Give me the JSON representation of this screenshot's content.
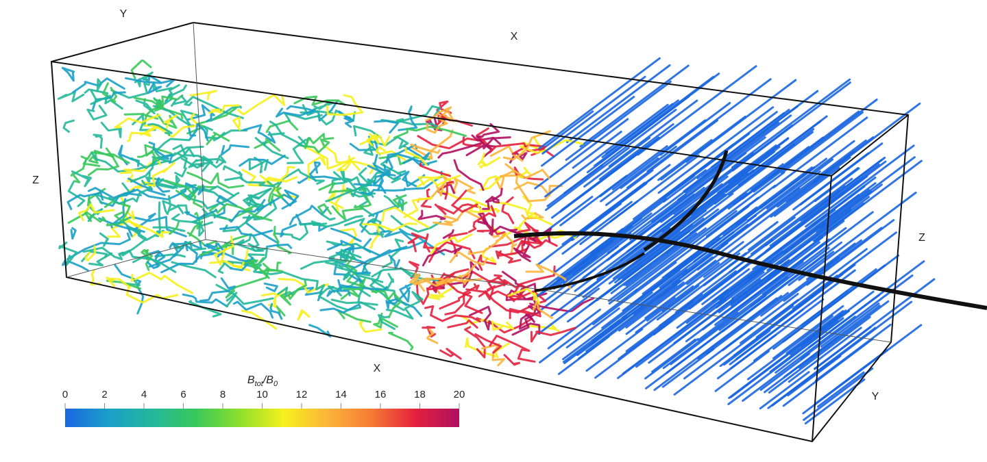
{
  "axis_labels": [
    "Y",
    "X",
    "Z",
    "Z",
    "X",
    "Y"
  ],
  "colorbar": {
    "label": [
      {
        "text": "B"
      },
      {
        "sub": "tot"
      },
      {
        "text": "/B"
      },
      {
        "sub": "0"
      }
    ],
    "range": [
      0,
      20
    ],
    "ticks": [
      0,
      2,
      4,
      6,
      8,
      10,
      12,
      14,
      16,
      18,
      20
    ],
    "colors": [
      "#1a66e0",
      "#1aa0c8",
      "#22b89a",
      "#3ac85a",
      "#8ee02a",
      "#f6f01e",
      "#fbb43a",
      "#f67a34",
      "#e4203e",
      "#b01060"
    ]
  }
}
